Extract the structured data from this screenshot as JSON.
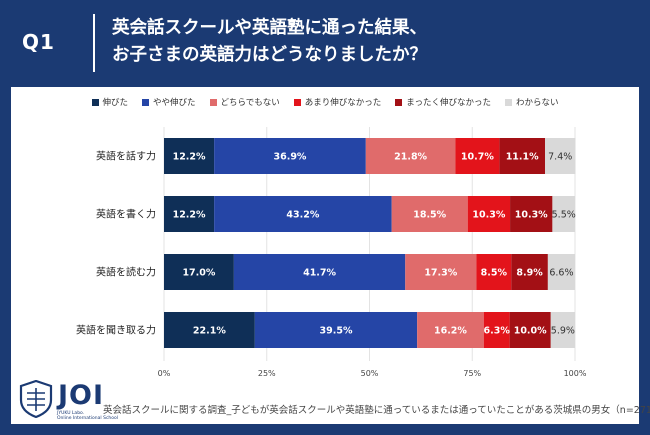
{
  "header": {
    "q_label": "Q1",
    "question_line1": "英会話スクールや英語塾に通った結果、",
    "question_line2": "お子さまの英語力はどうなりましたか？"
  },
  "logo": {
    "text": "JOI",
    "sub_line1": "JYUKU Labo.",
    "sub_line2": "Online International School"
  },
  "source_note": "英会話スクールに関する調査_子どもが英会話スクールや英語塾に通っているまたは通っていたことがある茨城県の男女（n=271）",
  "chart_data": {
    "type": "bar",
    "orientation": "horizontal",
    "stacked": "percent",
    "categories": [
      "英語を話す力",
      "英語を書く力",
      "英語を読む力",
      "英語を聞き取る力"
    ],
    "series": [
      {
        "name": "伸びた",
        "color": "#0f2f57",
        "values": [
          12.2,
          12.2,
          17.0,
          22.1
        ]
      },
      {
        "name": "やや伸びた",
        "color": "#2545a6",
        "values": [
          36.9,
          43.2,
          41.7,
          39.5
        ]
      },
      {
        "name": "どちらでもない",
        "color": "#e06b6b",
        "values": [
          21.8,
          18.5,
          17.3,
          16.2
        ]
      },
      {
        "name": "あまり伸びなかった",
        "color": "#e3141b",
        "values": [
          10.7,
          10.3,
          8.5,
          6.3
        ]
      },
      {
        "name": "まったく伸びなかった",
        "color": "#a31015",
        "values": [
          11.1,
          10.3,
          8.9,
          10.0
        ]
      },
      {
        "name": "わからない",
        "color": "#d9d9d9",
        "values": [
          7.4,
          5.5,
          6.6,
          5.9
        ]
      }
    ],
    "data_labels": [
      [
        "12.2%",
        "36.9%",
        "21.8%",
        "10.7%",
        "11.1%",
        "7.4%"
      ],
      [
        "12.2%",
        "43.2%",
        "18.5%",
        "10.3%",
        "10.3%",
        "5.5%"
      ],
      [
        "17.0%",
        "41.7%",
        "17.3%",
        "8.5%",
        "8.9%",
        "6.6%"
      ],
      [
        "22.1%",
        "39.5%",
        "16.2%",
        "6.3%",
        "10.0%",
        "5.9%"
      ]
    ],
    "x_ticks": [
      "0%",
      "25%",
      "50%",
      "75%",
      "100%"
    ],
    "xlim": [
      0,
      100
    ],
    "legend_position": "top",
    "grid": "vertical"
  }
}
